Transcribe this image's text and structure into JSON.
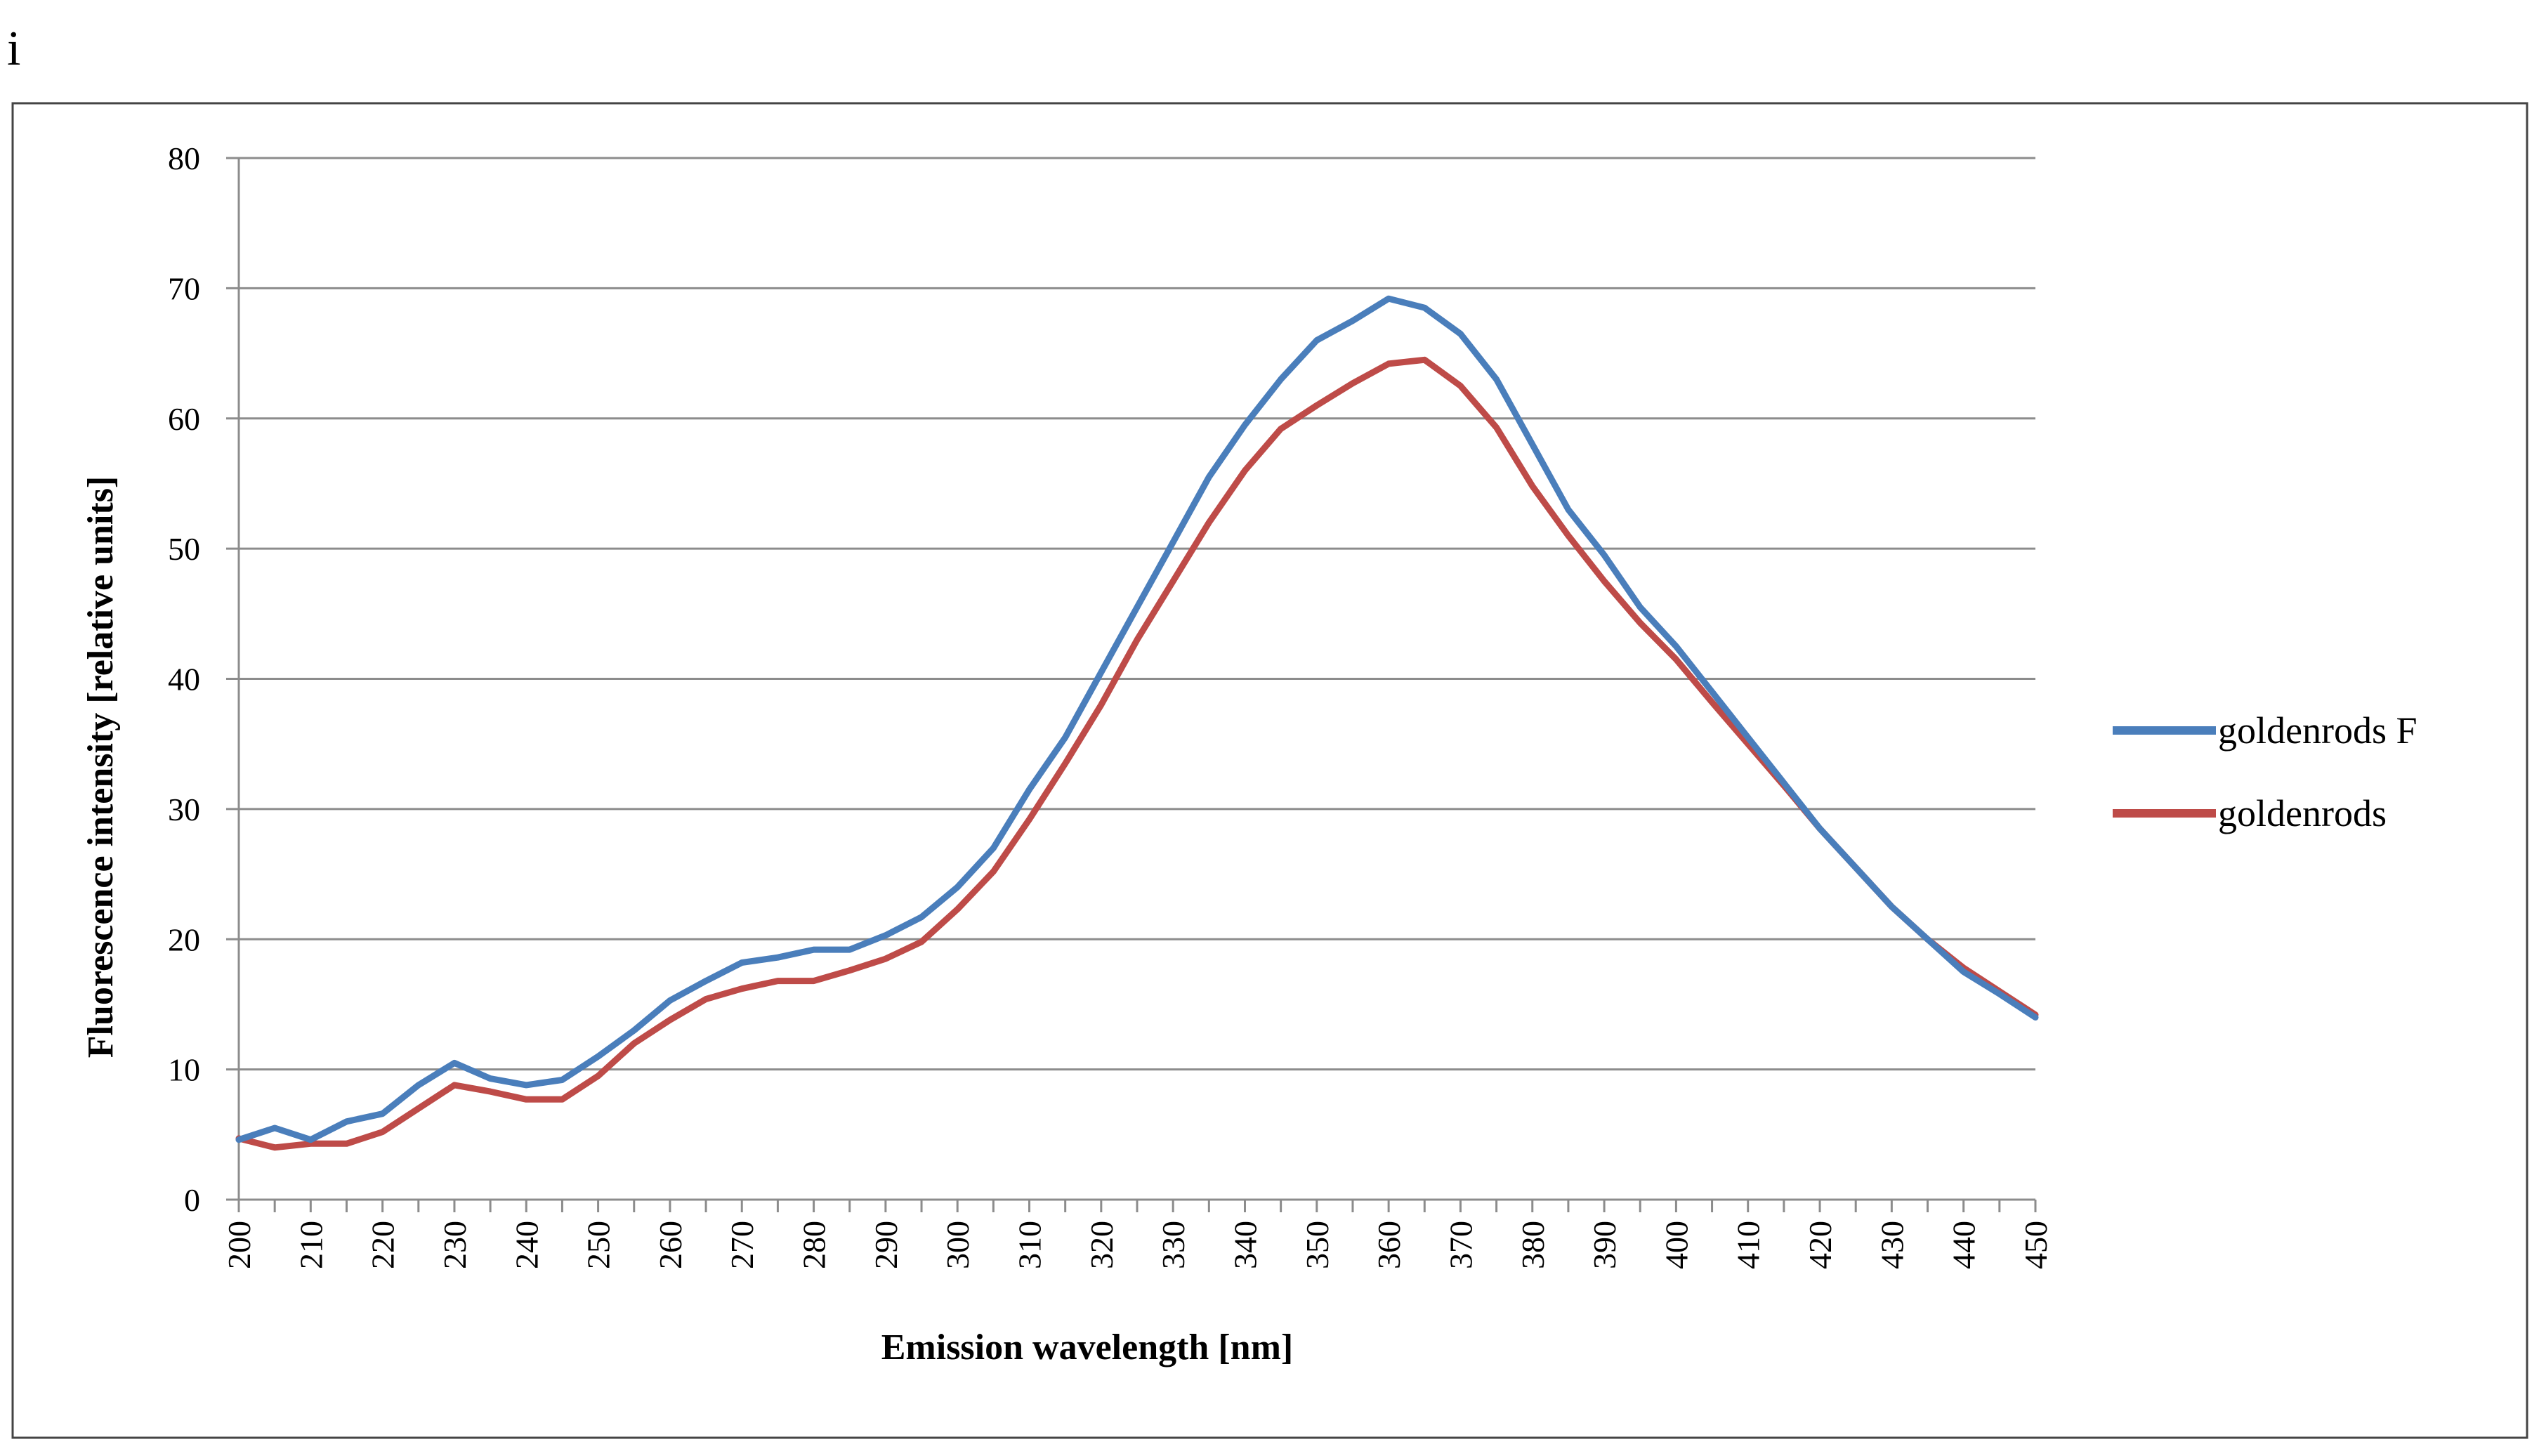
{
  "panel_label": "i",
  "chart_data": {
    "type": "line",
    "title": "",
    "xlabel": "Emission wavelength  [nm]",
    "ylabel": "Fluorescence intensity [relative units]",
    "xlim": [
      200,
      450
    ],
    "ylim": [
      0,
      80
    ],
    "y_ticks": [
      0,
      10,
      20,
      30,
      40,
      50,
      60,
      70,
      80
    ],
    "x_ticks": [
      200,
      210,
      220,
      230,
      240,
      250,
      260,
      270,
      280,
      290,
      300,
      310,
      320,
      330,
      340,
      350,
      360,
      370,
      380,
      390,
      400,
      410,
      420,
      430,
      440,
      450
    ],
    "grid": true,
    "legend_position": "right",
    "x": [
      200,
      205,
      210,
      215,
      220,
      225,
      230,
      235,
      240,
      245,
      250,
      255,
      260,
      265,
      270,
      275,
      280,
      285,
      290,
      295,
      300,
      305,
      310,
      315,
      320,
      325,
      330,
      335,
      340,
      345,
      350,
      355,
      360,
      365,
      370,
      375,
      380,
      385,
      390,
      395,
      400,
      405,
      410,
      415,
      420,
      425,
      430,
      435,
      440,
      445,
      450
    ],
    "series": [
      {
        "name": "goldenrods F",
        "color": "#4a7ebb",
        "values": [
          4.6,
          5.5,
          4.6,
          6.0,
          6.6,
          8.8,
          10.5,
          9.3,
          8.8,
          9.2,
          11.0,
          13.0,
          15.3,
          16.8,
          18.2,
          18.6,
          19.2,
          19.2,
          20.3,
          21.7,
          24.0,
          27.0,
          31.5,
          35.5,
          40.5,
          45.5,
          50.5,
          55.5,
          59.5,
          63.0,
          66.0,
          67.5,
          69.2,
          68.5,
          66.5,
          63.0,
          58.0,
          53.0,
          49.5,
          45.5,
          42.5,
          39.0,
          35.5,
          32.0,
          28.5,
          25.5,
          22.5,
          20.0,
          17.5,
          15.8,
          14.0
        ]
      },
      {
        "name": "goldenrods",
        "color": "#be4b48",
        "values": [
          4.7,
          4.0,
          4.3,
          4.3,
          5.2,
          7.0,
          8.8,
          8.3,
          7.7,
          7.7,
          9.5,
          12.0,
          13.8,
          15.4,
          16.2,
          16.8,
          16.8,
          17.6,
          18.5,
          19.8,
          22.3,
          25.2,
          29.2,
          33.5,
          38.0,
          43.0,
          47.5,
          52.0,
          56.0,
          59.2,
          61.0,
          62.7,
          64.2,
          64.5,
          62.5,
          59.3,
          54.8,
          51.0,
          47.5,
          44.3,
          41.5,
          38.2,
          35.0,
          31.8,
          28.5,
          25.5,
          22.5,
          20.0,
          17.8,
          16.0,
          14.2
        ]
      }
    ]
  }
}
